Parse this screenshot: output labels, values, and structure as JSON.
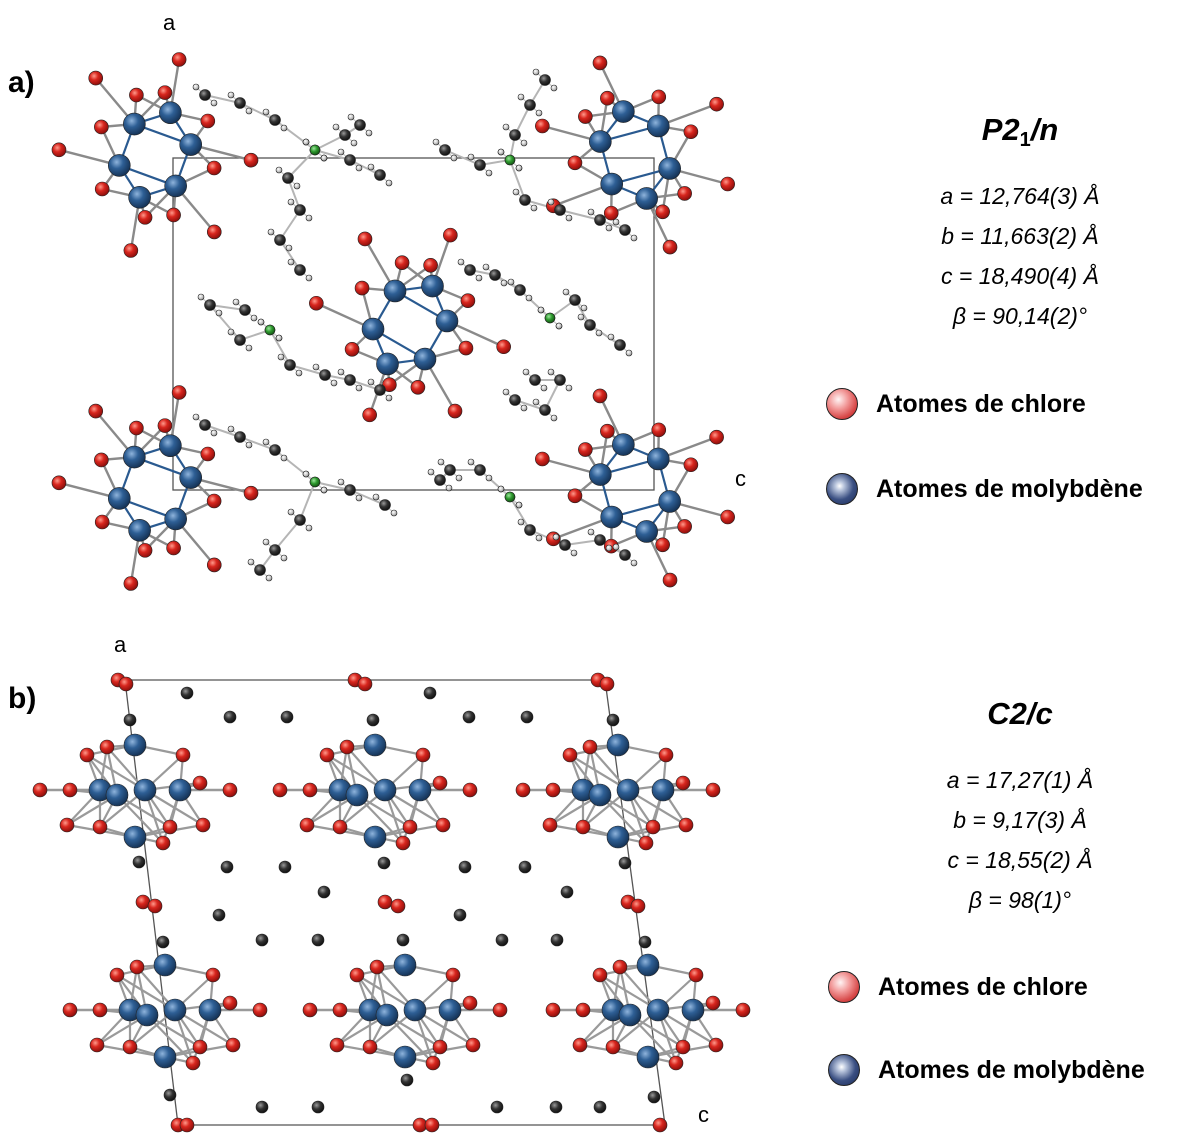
{
  "panels": [
    {
      "label": "a)",
      "axis_a": "a",
      "axis_c": "c",
      "space_group": {
        "main": "P2",
        "sub": "1",
        "tail": "/n"
      },
      "params": [
        "a = 12,764(3) Å",
        "b = 11,663(2) Å",
        "c = 18,490(4) Å",
        "β = 90,14(2)°"
      ],
      "legend": [
        "Atomes de chlore",
        "Atomes de molybdène"
      ]
    },
    {
      "label": "b)",
      "axis_a": "a",
      "axis_c": "c",
      "space_group": {
        "main": "C2/c",
        "sub": "",
        "tail": ""
      },
      "params": [
        "a = 17,27(1) Å",
        "b = 9,17(3) Å",
        "c = 18,55(2) Å",
        "β = 98(1)°"
      ],
      "legend": [
        "Atomes de chlore",
        "Atomes de molybdène"
      ]
    }
  ],
  "colors": {
    "chlorine": "#c8201e",
    "molybdenum": "#2c5b8e",
    "carbon": "#2f2f2f",
    "hydrogen": "#bdbdbd",
    "nitrogen": "#2e9a2e",
    "cell_edge": "#555555"
  }
}
